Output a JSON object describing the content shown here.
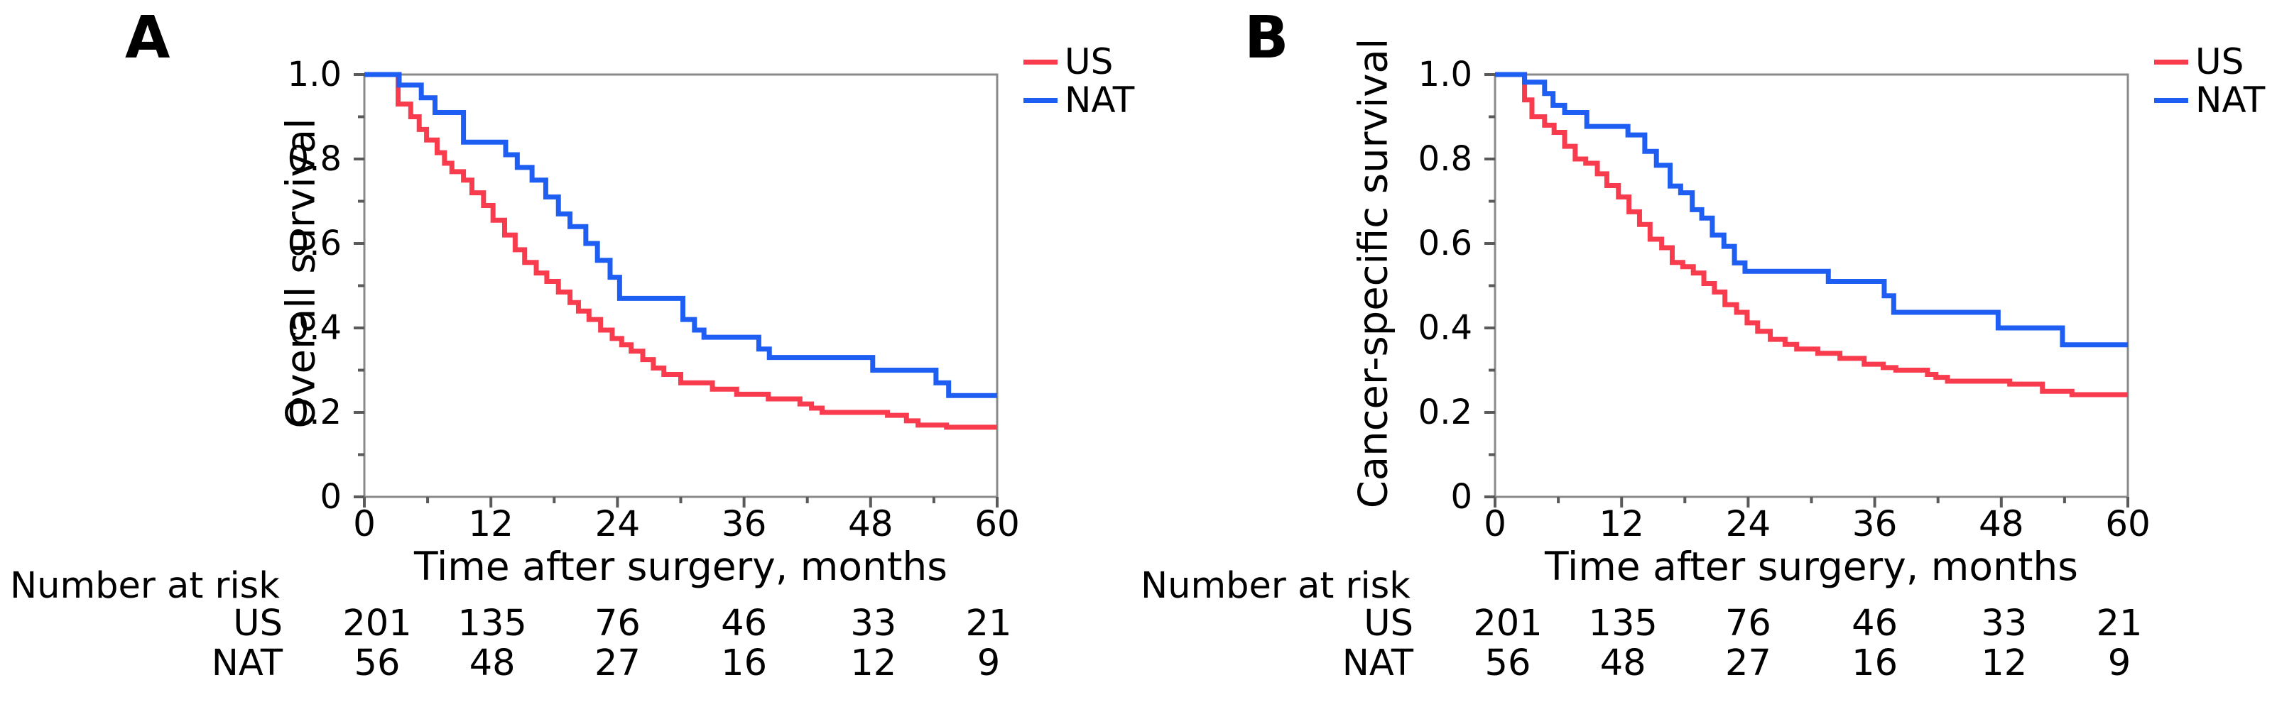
{
  "style": {
    "frame_color": "#8a8a8a",
    "tick_color": "#5a5a5a",
    "text_color": "#000000",
    "us_color": "#f83b4d",
    "nat_color": "#1e5ef3",
    "background": "#ffffff"
  },
  "chart_data": [
    {
      "type": "line",
      "subtype": "kaplan-meier-step",
      "panel_label": "A",
      "title": "",
      "ylabel": "Overall survival",
      "xlabel": "Time after surgery, months",
      "xlim": [
        0,
        60
      ],
      "ylim": [
        0,
        1
      ],
      "xticks": [
        0,
        12,
        24,
        36,
        48,
        60
      ],
      "xticks_minor": [
        6,
        18,
        30,
        42,
        54
      ],
      "ytick_labels": [
        "1.0",
        "0.8",
        "0.6",
        "0.4",
        "0.2",
        "0"
      ],
      "ytick_values": [
        1.0,
        0.8,
        0.6,
        0.4,
        0.2,
        0
      ],
      "yticks_minor": [
        0.9,
        0.7,
        0.5,
        0.3,
        0.1
      ],
      "grid": false,
      "legend_position": "top-right-outside",
      "series": [
        {
          "name": "US",
          "color": "#f83b4d",
          "steps": [
            [
              0,
              1
            ],
            [
              3.2,
              0.93
            ],
            [
              4.4,
              0.9
            ],
            [
              5.2,
              0.87
            ],
            [
              5.9,
              0.845
            ],
            [
              6.9,
              0.815
            ],
            [
              7.6,
              0.79
            ],
            [
              8.3,
              0.77
            ],
            [
              9.4,
              0.75
            ],
            [
              10.2,
              0.72
            ],
            [
              11.3,
              0.69
            ],
            [
              12.2,
              0.655
            ],
            [
              13.3,
              0.62
            ],
            [
              14.3,
              0.585
            ],
            [
              15.2,
              0.555
            ],
            [
              16.3,
              0.53
            ],
            [
              17.3,
              0.51
            ],
            [
              18.4,
              0.485
            ],
            [
              19.5,
              0.46
            ],
            [
              20.3,
              0.44
            ],
            [
              21.3,
              0.42
            ],
            [
              22.4,
              0.395
            ],
            [
              23.5,
              0.375
            ],
            [
              24.4,
              0.36
            ],
            [
              25.3,
              0.345
            ],
            [
              26.4,
              0.325
            ],
            [
              27.4,
              0.305
            ],
            [
              28.4,
              0.29
            ],
            [
              30,
              0.27
            ],
            [
              33,
              0.255
            ],
            [
              35.3,
              0.243
            ],
            [
              38.3,
              0.232
            ],
            [
              41.3,
              0.22
            ],
            [
              42.4,
              0.21
            ],
            [
              43.4,
              0.2
            ],
            [
              49.6,
              0.193
            ],
            [
              51.4,
              0.18
            ],
            [
              52.5,
              0.17
            ],
            [
              55.2,
              0.165
            ],
            [
              60,
              0.165
            ]
          ]
        },
        {
          "name": "NAT",
          "color": "#1e5ef3",
          "steps": [
            [
              0,
              1
            ],
            [
              3.3,
              0.975
            ],
            [
              5.4,
              0.945
            ],
            [
              6.7,
              0.91
            ],
            [
              9.4,
              0.84
            ],
            [
              13.4,
              0.81
            ],
            [
              14.5,
              0.78
            ],
            [
              15.9,
              0.75
            ],
            [
              17.2,
              0.71
            ],
            [
              18.4,
              0.67
            ],
            [
              19.5,
              0.64
            ],
            [
              21,
              0.6
            ],
            [
              22.1,
              0.56
            ],
            [
              23.3,
              0.52
            ],
            [
              24.2,
              0.47
            ],
            [
              30.2,
              0.42
            ],
            [
              31.3,
              0.395
            ],
            [
              32.2,
              0.378
            ],
            [
              37.4,
              0.35
            ],
            [
              38.4,
              0.33
            ],
            [
              48.2,
              0.3
            ],
            [
              54.2,
              0.27
            ],
            [
              55.4,
              0.24
            ],
            [
              60,
              0.24
            ]
          ]
        }
      ],
      "number_at_risk": {
        "title": "Number at risk",
        "times": [
          0,
          12,
          24,
          36,
          48,
          60
        ],
        "rows": [
          {
            "name": "US",
            "values": [
              "201",
              "135",
              "76",
              "46",
              "33",
              "21"
            ]
          },
          {
            "name": "NAT",
            "values": [
              "56",
              "48",
              "27",
              "16",
              "12",
              "9"
            ]
          }
        ]
      }
    },
    {
      "type": "line",
      "subtype": "kaplan-meier-step",
      "panel_label": "B",
      "title": "",
      "ylabel": "Cancer-specific survival",
      "xlabel": "Time after surgery, months",
      "xlim": [
        0,
        60
      ],
      "ylim": [
        0,
        1
      ],
      "xticks": [
        0,
        12,
        24,
        36,
        48,
        60
      ],
      "xticks_minor": [
        6,
        18,
        30,
        42,
        54
      ],
      "ytick_labels": [
        "1.0",
        "0.8",
        "0.6",
        "0.4",
        "0.2",
        "0"
      ],
      "ytick_values": [
        1.0,
        0.8,
        0.6,
        0.4,
        0.2,
        0
      ],
      "yticks_minor": [
        0.9,
        0.7,
        0.5,
        0.3,
        0.1
      ],
      "grid": false,
      "legend_position": "top-right-outside",
      "series": [
        {
          "name": "US",
          "color": "#f83b4d",
          "steps": [
            [
              0,
              1
            ],
            [
              2.8,
              0.94
            ],
            [
              3.5,
              0.9
            ],
            [
              4.7,
              0.88
            ],
            [
              5.6,
              0.863
            ],
            [
              6.6,
              0.83
            ],
            [
              7.6,
              0.8
            ],
            [
              8.6,
              0.79
            ],
            [
              9.7,
              0.765
            ],
            [
              10.6,
              0.737
            ],
            [
              11.7,
              0.71
            ],
            [
              12.7,
              0.675
            ],
            [
              13.7,
              0.645
            ],
            [
              14.7,
              0.61
            ],
            [
              15.8,
              0.59
            ],
            [
              16.8,
              0.555
            ],
            [
              17.8,
              0.545
            ],
            [
              18.8,
              0.53
            ],
            [
              19.8,
              0.505
            ],
            [
              20.8,
              0.485
            ],
            [
              21.8,
              0.455
            ],
            [
              22.9,
              0.437
            ],
            [
              23.9,
              0.412
            ],
            [
              24.9,
              0.392
            ],
            [
              26.1,
              0.373
            ],
            [
              27.5,
              0.361
            ],
            [
              28.6,
              0.35
            ],
            [
              30.6,
              0.34
            ],
            [
              32.7,
              0.328
            ],
            [
              35,
              0.314
            ],
            [
              36.8,
              0.306
            ],
            [
              38,
              0.3
            ],
            [
              41,
              0.29
            ],
            [
              41.8,
              0.283
            ],
            [
              42.9,
              0.274
            ],
            [
              48.8,
              0.267
            ],
            [
              51.9,
              0.25
            ],
            [
              54.7,
              0.242
            ],
            [
              60,
              0.242
            ]
          ]
        },
        {
          "name": "NAT",
          "color": "#1e5ef3",
          "steps": [
            [
              0,
              1
            ],
            [
              2.8,
              0.982
            ],
            [
              4.7,
              0.955
            ],
            [
              5.5,
              0.927
            ],
            [
              6.6,
              0.91
            ],
            [
              8.7,
              0.877
            ],
            [
              12.6,
              0.857
            ],
            [
              14.2,
              0.818
            ],
            [
              15.3,
              0.785
            ],
            [
              16.6,
              0.736
            ],
            [
              17.6,
              0.72
            ],
            [
              18.7,
              0.68
            ],
            [
              19.6,
              0.66
            ],
            [
              20.6,
              0.62
            ],
            [
              21.7,
              0.593
            ],
            [
              22.7,
              0.554
            ],
            [
              23.7,
              0.534
            ],
            [
              31.6,
              0.51
            ],
            [
              36.9,
              0.476
            ],
            [
              37.8,
              0.437
            ],
            [
              47.7,
              0.4
            ],
            [
              53.8,
              0.36
            ],
            [
              60,
              0.36
            ]
          ]
        }
      ],
      "number_at_risk": {
        "title": "Number at risk",
        "times": [
          0,
          12,
          24,
          36,
          48,
          60
        ],
        "rows": [
          {
            "name": "US",
            "values": [
              "201",
              "135",
              "76",
              "46",
              "33",
              "21"
            ]
          },
          {
            "name": "NAT",
            "values": [
              "56",
              "48",
              "27",
              "16",
              "12",
              "9"
            ]
          }
        ]
      }
    }
  ]
}
